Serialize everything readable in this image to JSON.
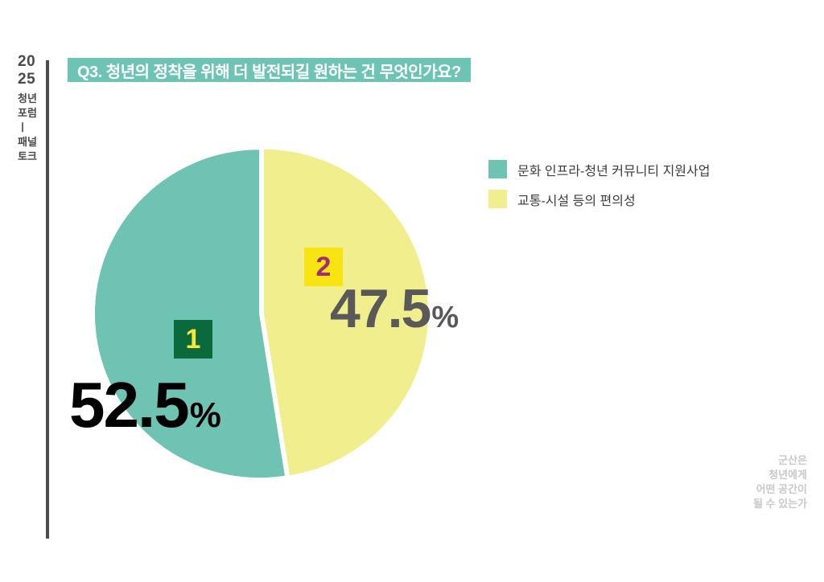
{
  "sidebar": {
    "year_line1": "20",
    "year_line2": "25",
    "lines": [
      "청년",
      "포럼",
      "ㅣ",
      "패널",
      "토크"
    ],
    "text_color": "#4a4a4a",
    "divider_color": "#4d4d4d"
  },
  "header": {
    "title": "Q3. 청년의 정착을 위해 더 발전되길 원하는 건 무엇인가요?",
    "bg_color": "#6ec4b4",
    "text_color": "#ffffff"
  },
  "chart_data": {
    "type": "pie",
    "title": "Q3. 청년의 정착을 위해 더 발전되길 원하는 건 무엇인가요?",
    "start_angle": "top",
    "order_clockwise_from_top": [
      "교통-시설 등의 편의성",
      "문화 인프라-청년 커뮤니티 지원사업"
    ],
    "gap_color": "#ffffff",
    "legend_position": "right",
    "slices": [
      {
        "rank": "1",
        "label": "문화 인프라-청년 커뮤니티 지원사업",
        "value": 52.5,
        "display": "52.5",
        "unit": "%",
        "color": "#6fc3b2",
        "rank_box_bg": "#0b6a3c",
        "rank_text_color": "#f6e73b",
        "value_text_color": "#000000"
      },
      {
        "rank": "2",
        "label": "교통-시설 등의 편의성",
        "value": 47.5,
        "display": "47.5",
        "unit": "%",
        "color": "#f1ee8e",
        "rank_box_bg": "#f8e412",
        "rank_text_color": "#a42a74",
        "value_text_color": "#595959"
      }
    ]
  },
  "legend": {
    "text_color": "#3c3c3c"
  },
  "footer": {
    "lines": [
      "군산은",
      "청년에게",
      "어떤 공간이",
      "될 수 있는가"
    ],
    "text_color": "#c8c8c8"
  }
}
